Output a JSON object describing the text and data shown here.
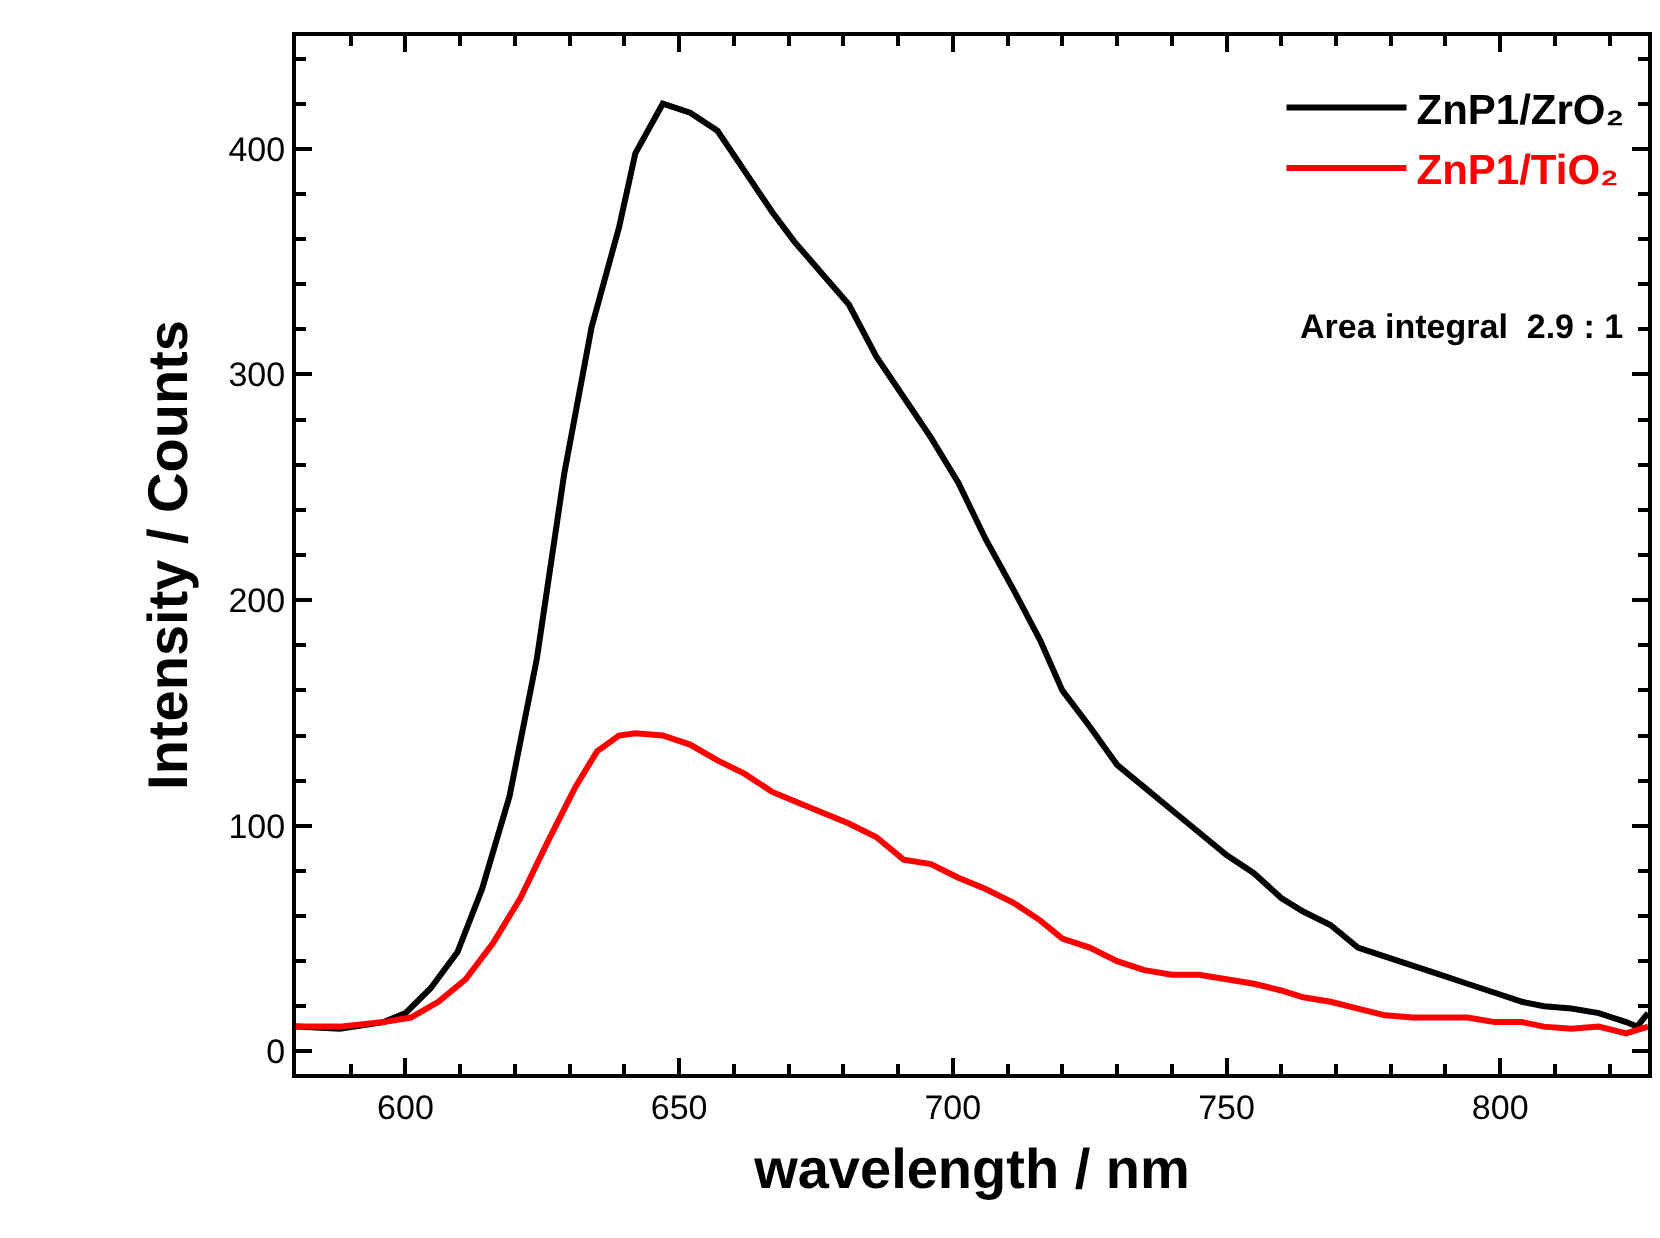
{
  "chart_data": {
    "type": "line",
    "xlabel": "wavelength / nm",
    "ylabel": "Intensity / Counts",
    "xlim": [
      580,
      827
    ],
    "xticks": [
      600,
      650,
      700,
      750,
      800
    ],
    "ylim": [
      -10,
      450
    ],
    "yticks": [
      0,
      100,
      200,
      300,
      400
    ],
    "grid": false,
    "legend": "top right",
    "marker": "none",
    "line_style": "solid",
    "annotations": [
      "Area integral  2.9 : 1"
    ],
    "series": [
      {
        "name": "ZnP1/ZrO₂",
        "color": "#000000",
        "x": [
          580,
          588,
          596,
          600,
          604.6,
          609.5,
          614,
          619,
          624,
          629,
          634,
          639,
          642,
          647,
          652,
          657,
          662,
          667,
          671,
          676,
          681,
          686,
          691,
          696,
          701,
          706,
          711,
          716,
          720,
          725,
          730,
          735,
          740,
          745,
          750,
          755,
          760,
          764,
          769,
          774,
          779,
          784,
          789,
          794,
          799,
          804,
          808,
          813,
          818,
          823,
          825,
          827
        ],
        "values": [
          11,
          10,
          13,
          17,
          28,
          44,
          72,
          113,
          174,
          256,
          321,
          365,
          398,
          420,
          416,
          408,
          390,
          372,
          359,
          345,
          331,
          308,
          290,
          272,
          252,
          227,
          205,
          182,
          160,
          144,
          127,
          117,
          107,
          97,
          87,
          79,
          68,
          62,
          56,
          46,
          42,
          38,
          34,
          30,
          26,
          22,
          20,
          19,
          17,
          13,
          11,
          17
        ]
      },
      {
        "name": "ZnP1/TiO₂",
        "color": "#ff0000",
        "x": [
          580,
          588,
          596,
          601,
          606,
          611,
          616,
          621,
          626,
          631,
          635,
          639,
          642,
          647,
          652,
          657,
          662,
          667,
          671,
          676,
          681,
          686,
          691,
          696,
          701,
          706,
          711,
          716,
          720,
          725,
          730,
          735,
          740,
          745,
          750,
          755,
          760,
          764,
          769,
          774,
          779,
          784,
          789,
          794,
          799,
          804,
          808,
          813,
          818,
          823,
          827
        ],
        "values": [
          11,
          11,
          13,
          15,
          22,
          32,
          48,
          68,
          93,
          117,
          133,
          140,
          141,
          140,
          136,
          129,
          123,
          115,
          111,
          106,
          101,
          95,
          85,
          83,
          77,
          72,
          66,
          58,
          50,
          46,
          40,
          36,
          34,
          34,
          32,
          30,
          27,
          24,
          22,
          19,
          16,
          15,
          15,
          15,
          13,
          13,
          11,
          10,
          11,
          8,
          11
        ]
      }
    ]
  }
}
